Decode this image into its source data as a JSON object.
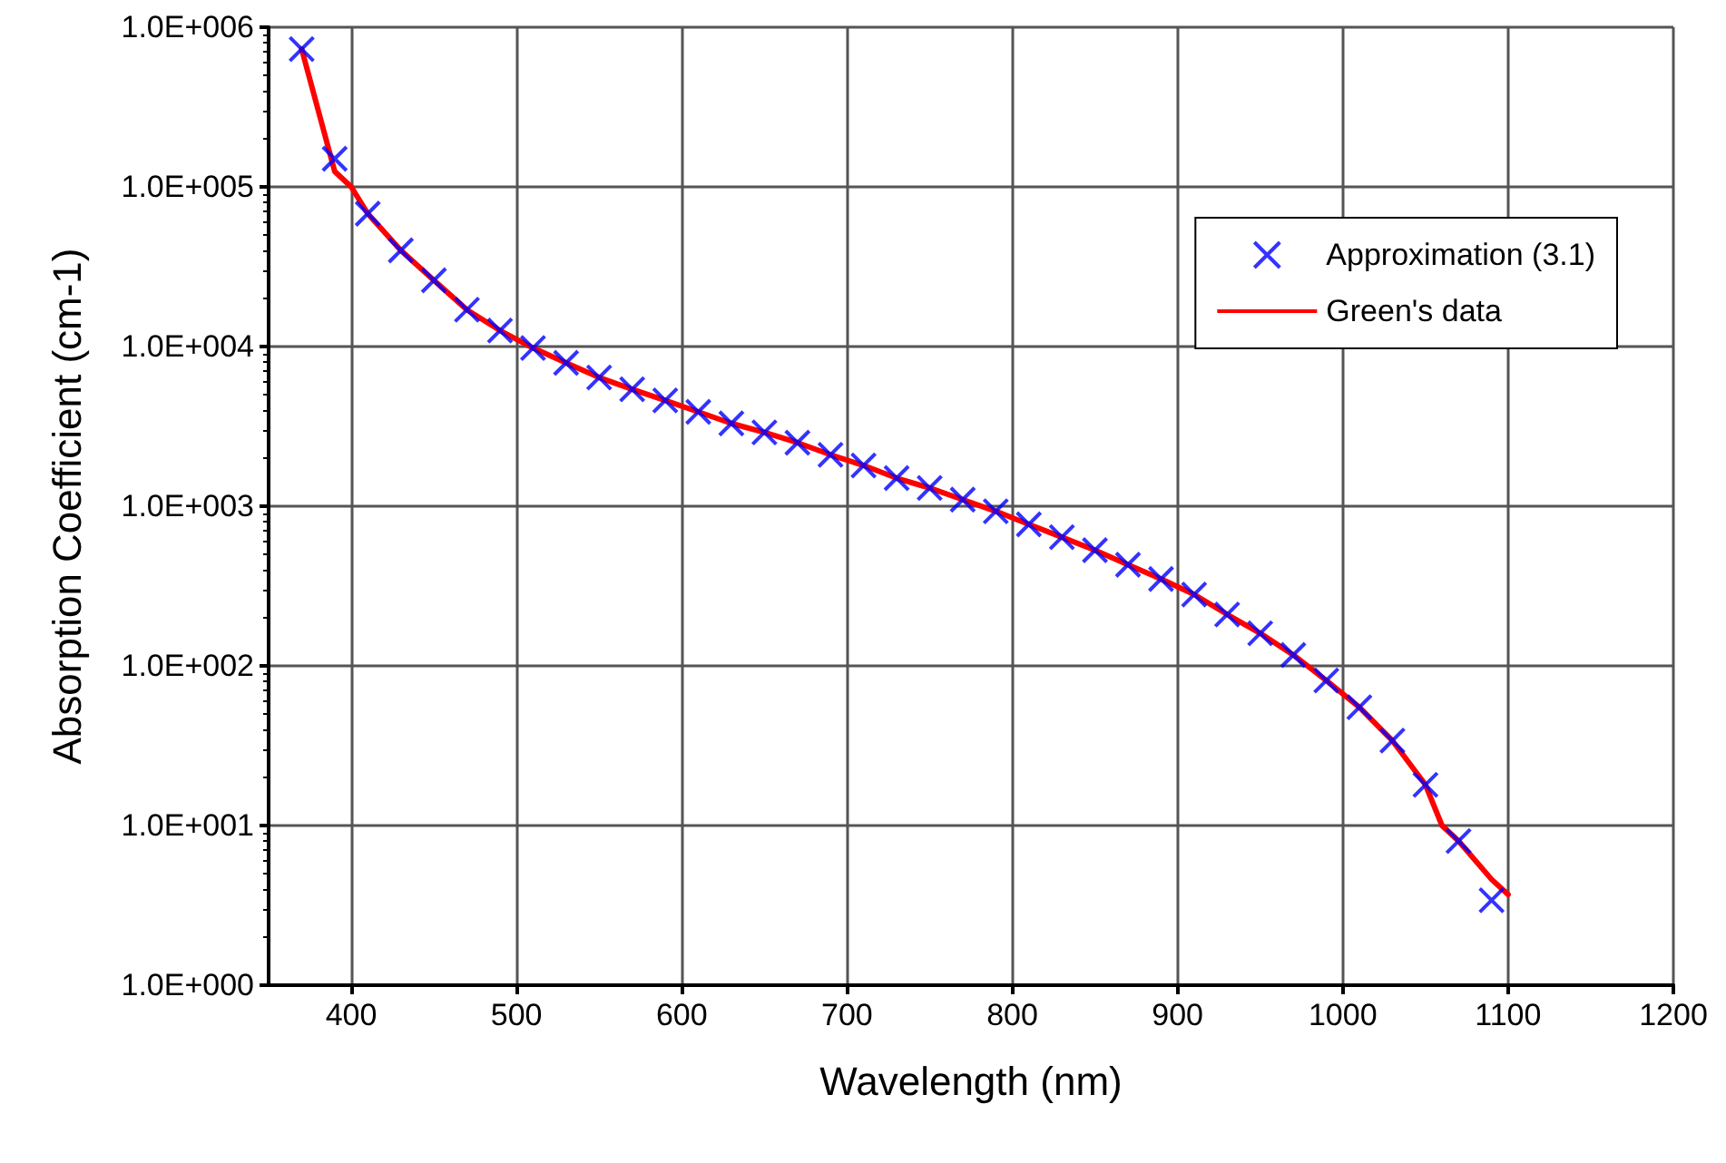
{
  "chart_data": {
    "type": "line",
    "xlabel": "Wavelength (nm)",
    "ylabel": "Absorption Coefficient (cm-1)",
    "xlim": [
      350,
      1200
    ],
    "xticks": [
      400,
      500,
      600,
      700,
      800,
      900,
      1000,
      1100,
      1200
    ],
    "ylim": [
      1,
      1000000
    ],
    "log": "y",
    "yticks": [
      {
        "value": 1,
        "label": "1.0E+000"
      },
      {
        "value": 10,
        "label": "1.0E+001"
      },
      {
        "value": 100,
        "label": "1.0E+002"
      },
      {
        "value": 1000,
        "label": "1.0E+003"
      },
      {
        "value": 10000,
        "label": "1.0E+004"
      },
      {
        "value": 100000,
        "label": "1.0E+005"
      },
      {
        "value": 1000000,
        "label": "1.0E+006"
      }
    ],
    "grid": true,
    "legend": "top right",
    "series": [
      {
        "name": "Approximation (3.1)",
        "type": "scatter",
        "marker": "cross",
        "color": "#0000ff",
        "x": [
          370,
          390,
          410,
          430,
          450,
          470,
          490,
          510,
          530,
          550,
          570,
          590,
          610,
          630,
          650,
          670,
          690,
          710,
          730,
          750,
          770,
          790,
          810,
          830,
          850,
          870,
          890,
          910,
          930,
          950,
          970,
          990,
          1010,
          1030,
          1050,
          1070,
          1090
        ],
        "values": [
          730000,
          150000,
          68000,
          40000,
          26000,
          17000,
          12600,
          9800,
          7900,
          6400,
          5400,
          4600,
          3900,
          3300,
          2900,
          2500,
          2100,
          1800,
          1500,
          1300,
          1100,
          930,
          770,
          640,
          530,
          430,
          350,
          280,
          210,
          160,
          117,
          81,
          55,
          34,
          18,
          8,
          3.4
        ]
      },
      {
        "name": "Green's data",
        "marker": "none",
        "color": "#ff0000",
        "x": [
          370,
          390,
          400,
          410,
          430,
          450,
          470,
          490,
          510,
          530,
          550,
          570,
          590,
          610,
          630,
          650,
          670,
          690,
          710,
          730,
          750,
          770,
          790,
          810,
          830,
          850,
          870,
          890,
          910,
          930,
          950,
          970,
          990,
          1010,
          1030,
          1050,
          1060,
          1070,
          1090,
          1100
        ],
        "values": [
          730000,
          125000,
          100000,
          68000,
          40000,
          26000,
          17000,
          12600,
          9800,
          7900,
          6400,
          5400,
          4600,
          3900,
          3300,
          2900,
          2500,
          2100,
          1800,
          1500,
          1300,
          1100,
          930,
          770,
          640,
          530,
          430,
          350,
          280,
          210,
          160,
          117,
          81,
          55,
          34,
          18,
          10,
          8,
          4.6,
          3.7
        ]
      }
    ]
  }
}
